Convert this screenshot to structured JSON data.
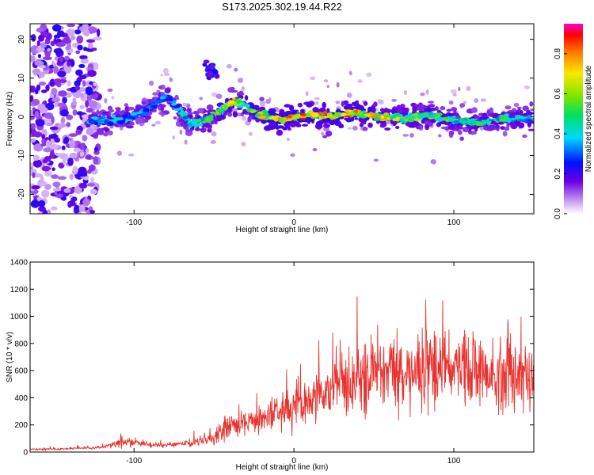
{
  "title": "S173.2025.302.19.44.R22",
  "colors": {
    "snr_line": "#e8322e",
    "axis": "#000000",
    "background": "#ffffff"
  },
  "chart_data": [
    {
      "type": "heatmap",
      "name": "spectrogram",
      "xlabel": "Height of straight line (km)",
      "ylabel": "Frequency (Hz)",
      "xlim": [
        -165,
        150
      ],
      "ylim": [
        -25,
        24
      ],
      "xticks": [
        -100,
        0,
        100
      ],
      "yticks": [
        -20,
        -10,
        0,
        10,
        20
      ],
      "colorbar": {
        "label": "Normalized spectral amplitude",
        "range": [
          0.0,
          0.95
        ],
        "ticks": [
          "0.0",
          "0.2",
          "0.4",
          "0.6",
          "0.8"
        ],
        "tick_values": [
          0.0,
          0.2,
          0.4,
          0.6,
          0.8
        ]
      },
      "ridge": {
        "x": [
          -125,
          -110,
          -95,
          -85,
          -78,
          -72,
          -65,
          -55,
          -45,
          -38,
          -30,
          -22,
          -15,
          -8,
          0,
          10,
          20,
          30,
          40,
          55,
          70,
          85,
          100,
          115,
          130,
          145
        ],
        "freq": [
          -1,
          -1,
          1,
          4,
          5,
          2,
          -2,
          -1,
          2,
          4,
          3,
          0.5,
          0,
          -1,
          0,
          0.5,
          0,
          0.5,
          1,
          0,
          -0.5,
          0.5,
          -1,
          -1.5,
          -0.5,
          -0.5
        ],
        "peak_amplitude": [
          0.45,
          0.45,
          0.4,
          0.35,
          0.4,
          0.45,
          0.55,
          0.6,
          0.65,
          0.75,
          0.7,
          0.8,
          0.95,
          0.85,
          0.9,
          0.95,
          0.9,
          0.95,
          0.85,
          0.8,
          0.7,
          0.65,
          0.6,
          0.55,
          0.55,
          0.5
        ]
      }
    },
    {
      "type": "line",
      "name": "snr",
      "xlabel": "Height of straight line (km)",
      "ylabel": "SNR (10 * v/v)",
      "xlim": [
        -165,
        150
      ],
      "ylim": [
        0,
        1400
      ],
      "xticks": [
        -100,
        0,
        100
      ],
      "yticks": [
        0,
        200,
        400,
        600,
        800,
        1000,
        1200,
        1400
      ],
      "envelope": {
        "x": [
          -165,
          -140,
          -120,
          -110,
          -100,
          -90,
          -80,
          -70,
          -60,
          -50,
          -42,
          -35,
          -25,
          -15,
          -5,
          5,
          15,
          25,
          35,
          45,
          55,
          65,
          75,
          85,
          95,
          105,
          115,
          125,
          135,
          145,
          150
        ],
        "mean": [
          20,
          25,
          35,
          70,
          70,
          55,
          50,
          60,
          75,
          110,
          200,
          190,
          220,
          280,
          330,
          350,
          420,
          480,
          520,
          560,
          600,
          620,
          620,
          620,
          610,
          600,
          590,
          580,
          580,
          560,
          560
        ],
        "spread": [
          15,
          15,
          20,
          60,
          55,
          35,
          30,
          40,
          60,
          80,
          170,
          150,
          170,
          220,
          280,
          260,
          300,
          350,
          380,
          430,
          460,
          520,
          520,
          540,
          520,
          500,
          500,
          480,
          480,
          500,
          500
        ]
      }
    }
  ]
}
